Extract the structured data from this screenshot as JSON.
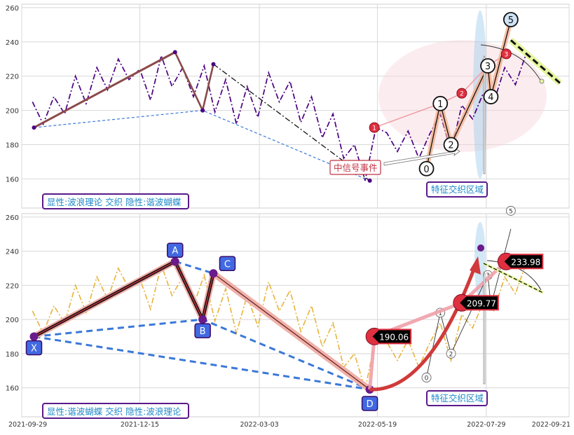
{
  "chart_data": [
    {
      "type": "line",
      "panel": "top",
      "ylim": [
        143,
        262
      ],
      "y_ticks": [
        160,
        180,
        200,
        220,
        240,
        260
      ],
      "grid": true,
      "label_box": "显性:波浪理论 交织 隐性:谐波蝴蝶",
      "zone_label": "特征交织区域",
      "event_label": "中信号事件",
      "price_color": "#4b0082",
      "price": {
        "x": [
          "2021-10-06",
          "2021-10-13",
          "2021-10-20",
          "2021-10-27",
          "2021-11-03",
          "2021-11-10",
          "2021-11-17",
          "2021-11-24",
          "2021-12-01",
          "2021-12-08",
          "2021-12-15",
          "2021-12-22",
          "2021-12-29",
          "2022-01-05",
          "2022-01-12",
          "2022-01-19",
          "2022-01-26",
          "2022-02-02",
          "2022-02-09",
          "2022-02-16",
          "2022-02-23",
          "2022-03-02",
          "2022-03-09",
          "2022-03-16",
          "2022-03-23",
          "2022-03-30",
          "2022-04-06",
          "2022-04-13",
          "2022-04-20",
          "2022-04-27",
          "2022-05-04",
          "2022-05-11",
          "2022-05-18",
          "2022-05-25",
          "2022-06-01",
          "2022-06-08",
          "2022-06-15",
          "2022-06-22",
          "2022-06-29",
          "2022-07-06",
          "2022-07-13",
          "2022-07-20",
          "2022-07-27",
          "2022-08-03",
          "2022-08-10",
          "2022-08-17",
          "2022-08-24"
        ],
        "y": [
          205,
          192,
          208,
          198,
          220,
          204,
          225,
          212,
          230,
          218,
          224,
          206,
          232,
          214,
          225,
          208,
          226,
          199,
          218,
          192,
          214,
          196,
          222,
          205,
          217,
          193,
          208,
          184,
          198,
          172,
          180,
          159,
          190,
          187,
          176,
          188,
          172,
          186,
          198,
          176,
          203,
          195,
          210,
          205,
          225,
          215,
          233
        ]
      },
      "patterns": [
        {
          "name": "harmonic-legs",
          "points": [
            [
              "2021-10-07",
              190
            ],
            [
              "2022-01-07",
              234
            ],
            [
              "2022-01-25",
              200
            ],
            [
              "2022-02-01",
              227
            ],
            [
              "2022-05-14",
              159
            ]
          ]
        },
        {
          "name": "harmonic-dashed",
          "points": [
            [
              "2021-10-07",
              190
            ],
            [
              "2022-01-25",
              200
            ],
            [
              "2022-05-14",
              159
            ]
          ]
        },
        {
          "name": "wave-markers",
          "labels": [
            "0",
            "1",
            "2",
            "3",
            "4",
            "5"
          ],
          "points": [
            [
              "2022-06-20",
              166
            ],
            [
              "2022-06-29",
              204
            ],
            [
              "2022-07-06",
              180
            ],
            [
              "2022-07-30",
              226
            ],
            [
              "2022-08-01",
              208
            ],
            [
              "2022-08-14",
              253
            ]
          ]
        },
        {
          "name": "signal-markers",
          "labels": [
            "1",
            "2",
            "3"
          ],
          "points": [
            [
              "2022-05-17",
              190
            ],
            [
              "2022-07-13",
              210
            ],
            [
              "2022-08-11",
              233
            ]
          ]
        }
      ]
    },
    {
      "type": "line",
      "panel": "bottom",
      "ylim": [
        143,
        262
      ],
      "y_ticks": [
        160,
        180,
        200,
        220,
        240,
        260
      ],
      "grid": true,
      "label_box": "显性:谐波蝴蝶 交织 隐性:波浪理论",
      "zone_label": "特征交织区域",
      "price_color": "#e8b33a",
      "xlim": [
        "2021-09-29",
        "2022-09-21"
      ],
      "x_ticks": [
        "2021-09-29",
        "2021-12-15",
        "2022-03-03",
        "2022-05-19",
        "2022-07-29",
        "2022-09-21"
      ],
      "xabcd": {
        "labels": [
          "X",
          "A",
          "B",
          "C",
          "D"
        ],
        "points": [
          [
            "2021-10-07",
            190
          ],
          [
            "2022-01-07",
            234
          ],
          [
            "2022-01-25",
            200
          ],
          [
            "2022-02-01",
            227
          ],
          [
            "2022-05-14",
            159
          ]
        ]
      },
      "price_tags": [
        {
          "label": "190.06",
          "x": "2022-05-17",
          "y": 190.06
        },
        {
          "label": "209.77",
          "x": "2022-07-13",
          "y": 209.77
        },
        {
          "label": "233.98",
          "x": "2022-08-11",
          "y": 233.98
        }
      ],
      "wave_labels": [
        "0",
        "1",
        "2",
        "3",
        "4",
        "5"
      ]
    }
  ],
  "colors": {
    "label_text": "#1e88c8",
    "label_border": "#5a1a8a",
    "harmonic_fill": "#4169e1",
    "signal_red": "#e03040",
    "dash_blue": "#3a78d8"
  }
}
